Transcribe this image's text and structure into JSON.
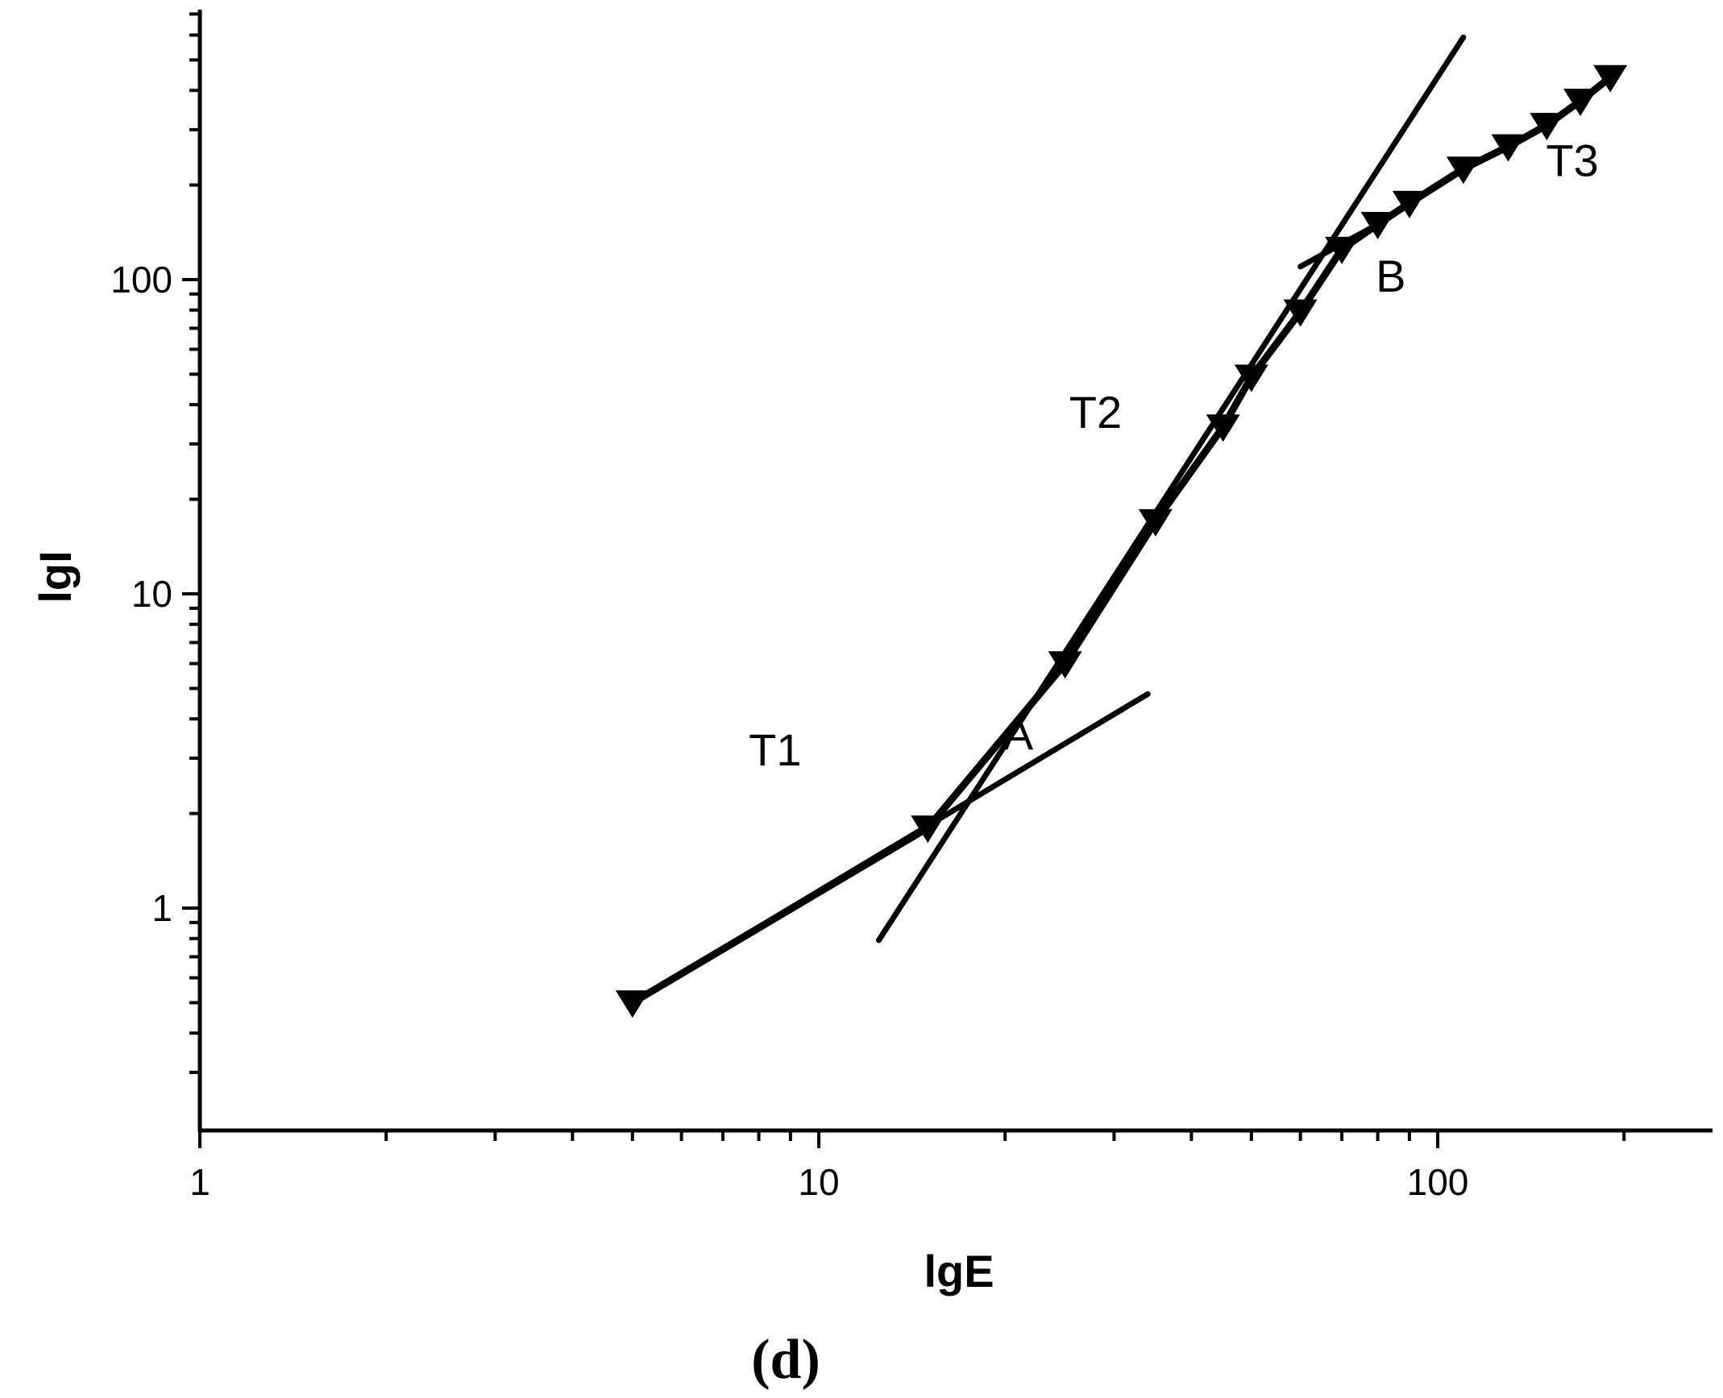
{
  "chart_data": {
    "type": "line",
    "title": "",
    "caption": "(d)",
    "xlabel": "lgE",
    "ylabel": "lgI",
    "x_scale": "log",
    "y_scale": "log",
    "xlim": [
      1,
      350
    ],
    "ylim": [
      0.25,
      800
    ],
    "x_ticks": [
      {
        "value": 1,
        "label": "1"
      },
      {
        "value": 10,
        "label": "10"
      },
      {
        "value": 100,
        "label": "100"
      }
    ],
    "y_ticks": [
      {
        "value": 1,
        "label": "1"
      },
      {
        "value": 10,
        "label": "10"
      },
      {
        "value": 100,
        "label": "100"
      }
    ],
    "grid": false,
    "legend": "none",
    "series": [
      {
        "marker": "triangle-down",
        "x": [
          5,
          15,
          25,
          35,
          45,
          50,
          60,
          70,
          80,
          90,
          110,
          130,
          150,
          170,
          190
        ],
        "y": [
          0.5,
          1.8,
          6,
          17,
          34,
          49,
          79,
          125,
          150,
          175,
          225,
          265,
          310,
          370,
          440
        ]
      },
      {
        "style": "fit-line",
        "x": [
          5,
          34
        ],
        "y": [
          0.5,
          4.8
        ]
      },
      {
        "style": "fit-line",
        "x": [
          12.5,
          110
        ],
        "y": [
          0.79,
          590
        ]
      },
      {
        "style": "fit-line",
        "x": [
          60,
          80
        ],
        "y": [
          110,
          150
        ]
      }
    ],
    "annotations": [
      {
        "text": "T1",
        "x": 8.5,
        "y": 3.2
      },
      {
        "text": "A",
        "x": 21,
        "y": 3.6
      },
      {
        "text": "T2",
        "x": 28,
        "y": 38
      },
      {
        "text": "B",
        "x": 84,
        "y": 103
      },
      {
        "text": "T3",
        "x": 165,
        "y": 240
      }
    ]
  }
}
